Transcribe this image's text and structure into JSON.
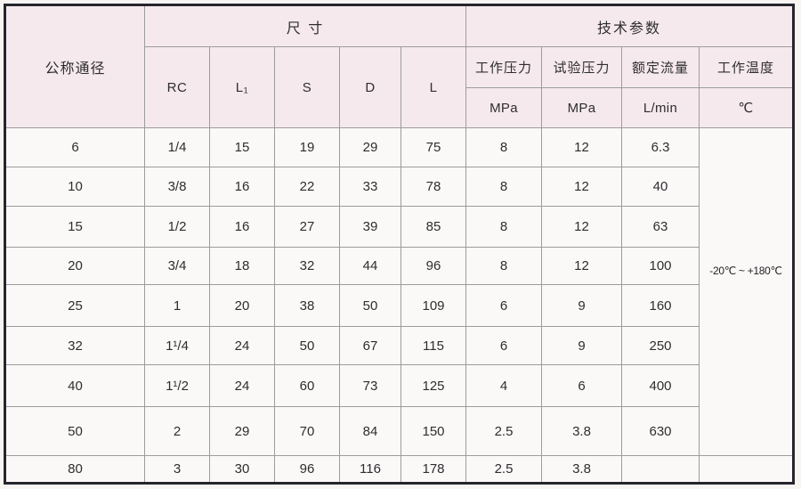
{
  "table": {
    "headers": {
      "nominal_diameter": "公称通径",
      "dimensions_group": "尺 寸",
      "technical_group": "技术参数",
      "dimension_columns": [
        "RC",
        "L₁",
        "S",
        "D",
        "L"
      ],
      "param_columns": [
        {
          "label": "工作压力",
          "unit": "MPa"
        },
        {
          "label": "试验压力",
          "unit": "MPa"
        },
        {
          "label": "额定流量",
          "unit": "L/min"
        },
        {
          "label": "工作温度",
          "unit": "℃"
        }
      ]
    },
    "working_temperature_range": "-20℃ ~ +180℃",
    "rows": [
      {
        "dn": "6",
        "rc": "1/4",
        "l1": "15",
        "s": "19",
        "d": "29",
        "l": "75",
        "wp": "8",
        "tp": "12",
        "flow": "6.3"
      },
      {
        "dn": "10",
        "rc": "3/8",
        "l1": "16",
        "s": "22",
        "d": "33",
        "l": "78",
        "wp": "8",
        "tp": "12",
        "flow": "40"
      },
      {
        "dn": "15",
        "rc": "1/2",
        "l1": "16",
        "s": "27",
        "d": "39",
        "l": "85",
        "wp": "8",
        "tp": "12",
        "flow": "63"
      },
      {
        "dn": "20",
        "rc": "3/4",
        "l1": "18",
        "s": "32",
        "d": "44",
        "l": "96",
        "wp": "8",
        "tp": "12",
        "flow": "100"
      },
      {
        "dn": "25",
        "rc": "1",
        "l1": "20",
        "s": "38",
        "d": "50",
        "l": "109",
        "wp": "6",
        "tp": "9",
        "flow": "160"
      },
      {
        "dn": "32",
        "rc": "1¹/4",
        "l1": "24",
        "s": "50",
        "d": "67",
        "l": "115",
        "wp": "6",
        "tp": "9",
        "flow": "250"
      },
      {
        "dn": "40",
        "rc": "1¹/2",
        "l1": "24",
        "s": "60",
        "d": "73",
        "l": "125",
        "wp": "4",
        "tp": "6",
        "flow": "400"
      },
      {
        "dn": "50",
        "rc": "2",
        "l1": "29",
        "s": "70",
        "d": "84",
        "l": "150",
        "wp": "2.5",
        "tp": "3.8",
        "flow": "630"
      },
      {
        "dn": "80",
        "rc": "3",
        "l1": "30",
        "s": "96",
        "d": "116",
        "l": "178",
        "wp": "2.5",
        "tp": "3.8",
        "flow": ""
      }
    ],
    "colors": {
      "header_bg": "#f6e9ed",
      "body_bg": "#fbf8f8",
      "grid_line": "#9c9c9c",
      "outer_border": "#25252d",
      "text": "#2e2e2e"
    }
  }
}
